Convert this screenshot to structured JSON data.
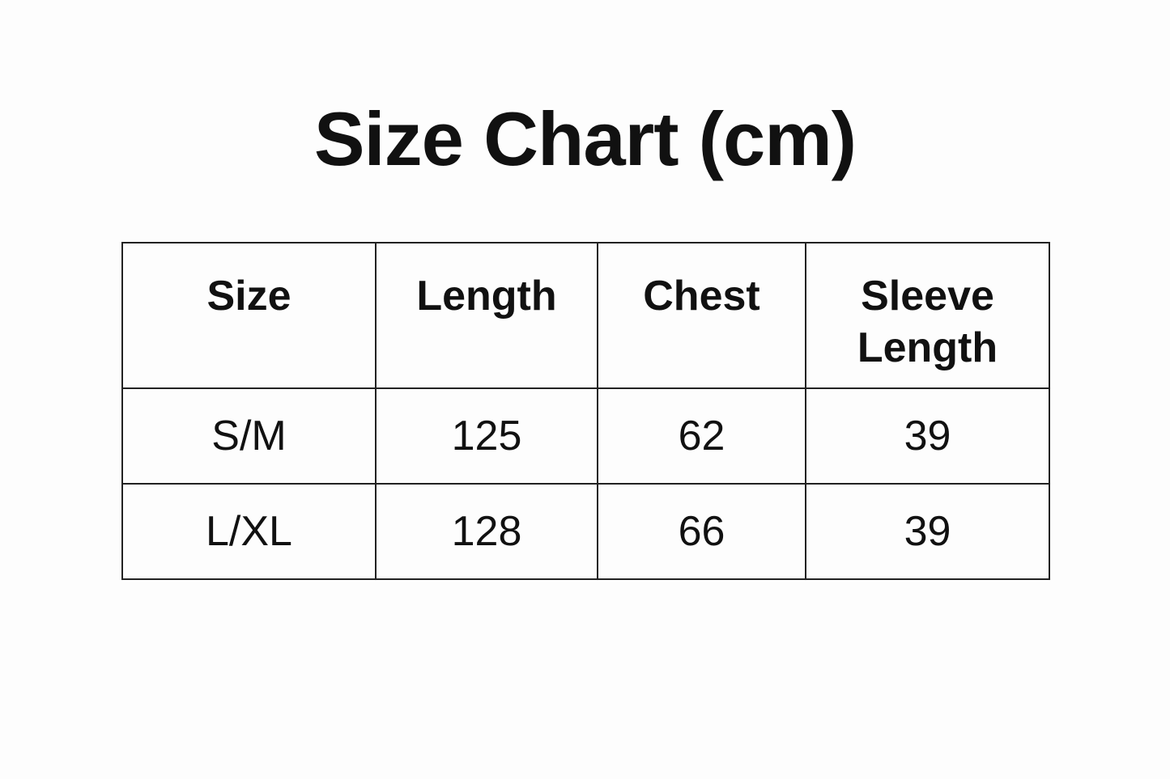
{
  "title": "Size Chart (cm)",
  "table": {
    "headers": [
      "Size",
      "Length",
      "Chest",
      "Sleeve Length"
    ],
    "rows": [
      [
        "S/M",
        "125",
        "62",
        "39"
      ],
      [
        "L/XL",
        "128",
        "66",
        "39"
      ]
    ]
  }
}
